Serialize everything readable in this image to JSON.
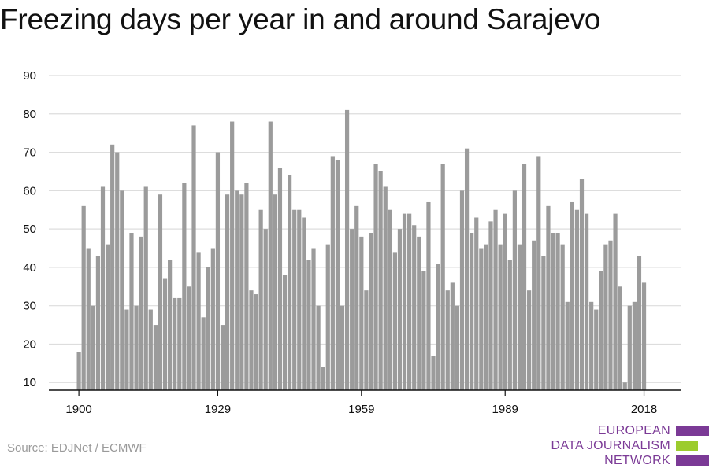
{
  "title": "Freezing days per year in and around Sarajevo",
  "source": "Source: EDJNet / ECMWF",
  "logo": {
    "lines": [
      "EUROPEAN",
      "DATA JOURNALISM",
      "NETWORK"
    ],
    "colors": [
      "#7b3a96",
      "#9ccc2e",
      "#7b3a96"
    ]
  },
  "colors": {
    "bar": "#9b9b9b",
    "grid": "#dddddd",
    "axis": "#111111"
  },
  "chart_data": {
    "type": "bar",
    "title": "Freezing days per year in and around Sarajevo",
    "xlabel": "",
    "ylabel": "",
    "x": [
      1900,
      1901,
      1902,
      1903,
      1904,
      1905,
      1906,
      1907,
      1908,
      1909,
      1910,
      1911,
      1912,
      1913,
      1914,
      1915,
      1916,
      1917,
      1918,
      1919,
      1920,
      1921,
      1922,
      1923,
      1924,
      1925,
      1926,
      1927,
      1928,
      1929,
      1930,
      1931,
      1932,
      1933,
      1934,
      1935,
      1936,
      1937,
      1938,
      1939,
      1940,
      1941,
      1942,
      1943,
      1944,
      1945,
      1946,
      1947,
      1948,
      1949,
      1950,
      1951,
      1952,
      1953,
      1954,
      1955,
      1956,
      1957,
      1958,
      1959,
      1960,
      1961,
      1962,
      1963,
      1964,
      1965,
      1966,
      1967,
      1968,
      1969,
      1970,
      1971,
      1972,
      1973,
      1974,
      1975,
      1976,
      1977,
      1978,
      1979,
      1980,
      1981,
      1982,
      1983,
      1984,
      1985,
      1986,
      1987,
      1988,
      1989,
      1990,
      1991,
      1992,
      1993,
      1994,
      1995,
      1996,
      1997,
      1998,
      1999,
      2000,
      2001,
      2002,
      2003,
      2004,
      2005,
      2006,
      2007,
      2008,
      2009,
      2010,
      2011,
      2012,
      2013,
      2014,
      2015,
      2016,
      2017,
      2018
    ],
    "values": [
      18,
      56,
      45,
      30,
      43,
      61,
      46,
      72,
      70,
      60,
      29,
      49,
      30,
      48,
      61,
      29,
      25,
      59,
      37,
      42,
      32,
      32,
      62,
      35,
      77,
      44,
      27,
      40,
      45,
      70,
      25,
      59,
      78,
      60,
      59,
      62,
      34,
      33,
      55,
      50,
      78,
      59,
      66,
      38,
      64,
      55,
      55,
      53,
      42,
      45,
      30,
      14,
      46,
      69,
      68,
      30,
      81,
      50,
      56,
      48,
      34,
      49,
      67,
      65,
      61,
      55,
      44,
      50,
      54,
      54,
      51,
      48,
      39,
      57,
      17,
      41,
      67,
      34,
      36,
      30,
      60,
      71,
      49,
      53,
      45,
      46,
      52,
      55,
      46,
      54,
      42,
      60,
      46,
      67,
      34,
      47,
      69,
      43,
      56,
      49,
      49,
      46,
      31,
      57,
      55,
      63,
      54,
      31,
      29,
      39,
      46,
      47,
      54,
      35,
      10,
      30,
      31,
      43,
      36
    ],
    "ylim": [
      8,
      90
    ],
    "yticks": [
      10,
      20,
      30,
      40,
      50,
      60,
      70,
      80,
      90
    ],
    "xticks": [
      1900,
      1929,
      1959,
      1989,
      2018
    ],
    "grid": true
  }
}
